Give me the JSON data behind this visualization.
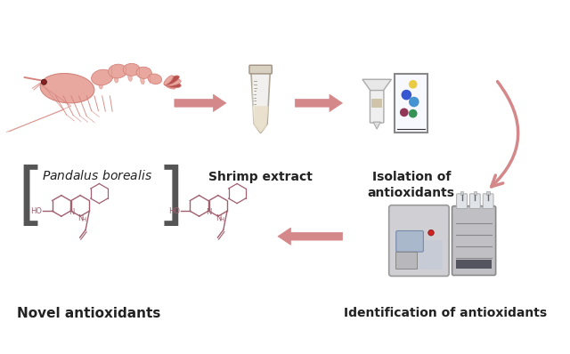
{
  "bg_color": "#ffffff",
  "arrow_color": "#d4888a",
  "text_color": "#1a1a1a",
  "label_shrimp_extract": "Shrimp extract",
  "label_isolation": "Isolation of\nantioxidants",
  "label_identification": "Identification of antioxidants",
  "label_novel": "Novel antioxidants",
  "figsize": [
    6.4,
    3.98
  ],
  "dpi": 100,
  "shrimp_body_color": "#d4827a",
  "shrimp_light_color": "#e8a8a0",
  "shrimp_dark_color": "#b85050",
  "tube_color": "#e8dfc8",
  "molecule_color": "#a06070",
  "bracket_color": "#555555",
  "dot_colors_tlc": [
    "#e8c830",
    "#2244cc",
    "#3388cc",
    "#882244",
    "#228844"
  ],
  "machine_body_color": "#c8c8cc",
  "machine_dark_color": "#989898",
  "arrow_lw": 2.5,
  "curved_arrow_color": "#d4888a",
  "text_fontsize": 10,
  "label_bold": true
}
